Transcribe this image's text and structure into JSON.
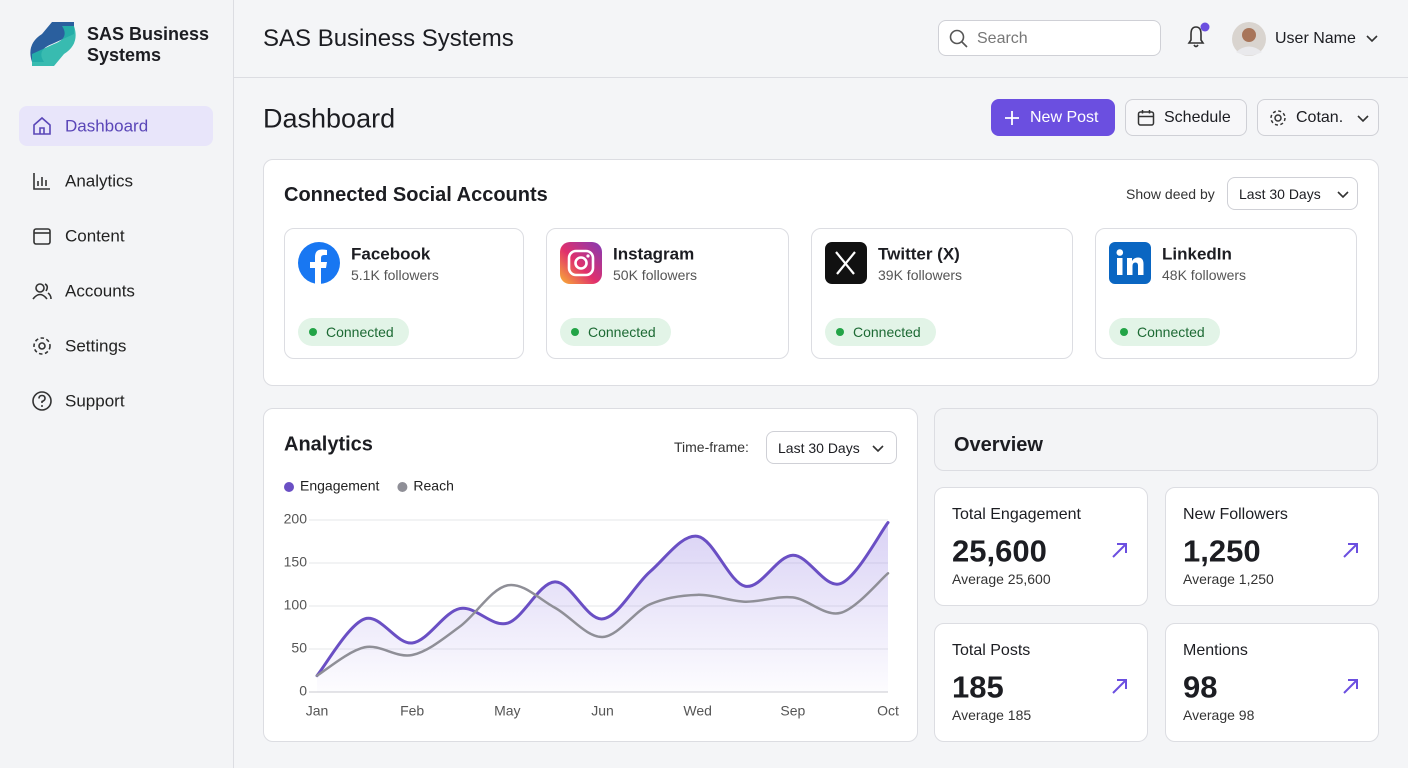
{
  "sidebar": {
    "brand": "SAS Business Systems",
    "nav": [
      "Dashboard",
      "Analytics",
      "Content",
      "Accounts",
      "Settings",
      "Support"
    ]
  },
  "header": {
    "title": "SAS Business Systems",
    "search_placeholder": "Search",
    "user": "User Name"
  },
  "page": {
    "title": "Dashboard",
    "actions": [
      "New Post",
      "Schedule",
      "Cotan."
    ]
  },
  "accounts": {
    "title": "Connected Social Accounts",
    "filter_label": "Show deed by",
    "filter_value": "Last 30 Days",
    "items": [
      {
        "name": "Facebook",
        "followers": "5.1K followers",
        "status": "Connected"
      },
      {
        "name": "Instagram",
        "followers": "50K followers",
        "status": "Connected"
      },
      {
        "name": "Twitter (X)",
        "followers": "39K followers",
        "status": "Connected"
      },
      {
        "name": "LinkedIn",
        "followers": "48K followers",
        "status": "Connected"
      }
    ]
  },
  "analytics": {
    "timeframe_label": "Time-frame:",
    "timeframe_value": "Last 30 Days"
  },
  "chart_data": {
    "type": "line",
    "title": "Analytics",
    "categories": [
      "Jan",
      null,
      "Feb",
      null,
      "May",
      null,
      "Jun",
      null,
      "Wed",
      null,
      "Sep",
      null,
      "Oct"
    ],
    "series": [
      {
        "name": "Engagement",
        "color": "#6a4fc4",
        "values": [
          19,
          85,
          57,
          97,
          80,
          128,
          85,
          140,
          181,
          123,
          159,
          126,
          197
        ]
      },
      {
        "name": "Reach",
        "color": "#8f8f97",
        "values": [
          19,
          52,
          43,
          76,
          124,
          98,
          64,
          102,
          113,
          105,
          110,
          92,
          138
        ]
      }
    ],
    "ylim": [
      0,
      200
    ],
    "yticks": [
      0,
      50,
      100,
      150,
      200
    ],
    "grid": true
  },
  "overview": {
    "title": "Overview",
    "cards": [
      {
        "label": "Total Engagement",
        "value": "25,600",
        "note": "Average 25,600"
      },
      {
        "label": "New Followers",
        "value": "1,250",
        "note": "Average 1,250"
      },
      {
        "label": "Total Posts",
        "value": "185",
        "note": "Average 185"
      },
      {
        "label": "Mentions",
        "value": "98",
        "note": "Average 98"
      }
    ]
  }
}
